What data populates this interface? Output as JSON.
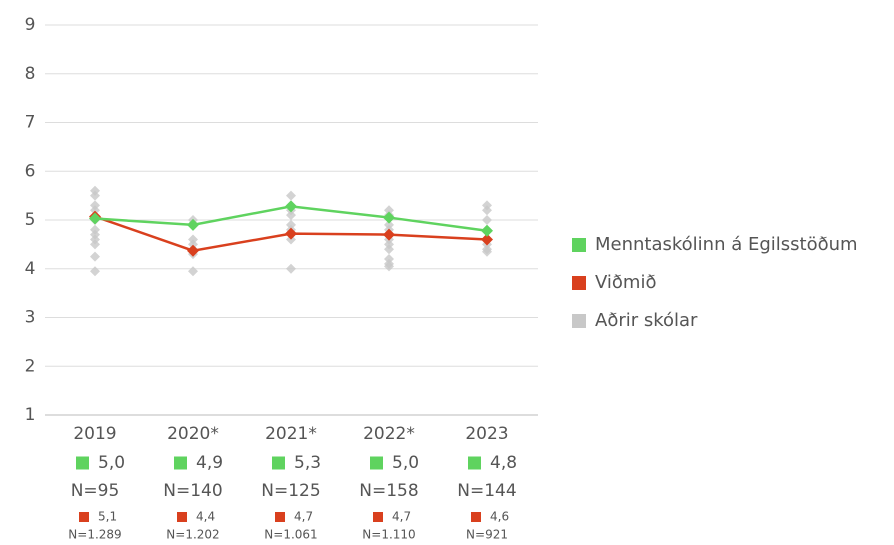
{
  "chart_data": {
    "type": "line",
    "categories": [
      "2019",
      "2020*",
      "2021*",
      "2022*",
      "2023"
    ],
    "ylim": [
      1,
      9
    ],
    "yticks": [
      1,
      2,
      3,
      4,
      5,
      6,
      7,
      8,
      9
    ],
    "grid": true,
    "legend": "right",
    "series": [
      {
        "name": "Menntaskólinn á Egilsstöðum",
        "color": "#5fd35f",
        "values": [
          5.03,
          4.9,
          5.28,
          5.05,
          4.78
        ],
        "value_labels": [
          "5,0",
          "4,9",
          "5,3",
          "5,0",
          "4,8"
        ],
        "n_labels": [
          "N=95",
          "N=140",
          "N=125",
          "N=158",
          "N=144"
        ]
      },
      {
        "name": "Viðmið",
        "color": "#d9401e",
        "values": [
          5.07,
          4.37,
          4.72,
          4.7,
          4.6
        ],
        "value_labels": [
          "5,1",
          "4,4",
          "4,7",
          "4,7",
          "4,6"
        ],
        "n_labels": [
          "N=1.289",
          "N=1.202",
          "N=1.061",
          "N=1.110",
          "N=921"
        ]
      },
      {
        "name": "Aðrir skólar",
        "color": "#c8c8c8",
        "type": "scatter",
        "values": [
          [
            5.6,
            5.5,
            5.3,
            5.2,
            5.0,
            4.8,
            4.7,
            4.6,
            4.5,
            4.25,
            3.95
          ],
          [
            5.0,
            4.9,
            4.6,
            4.5,
            4.4,
            4.3,
            3.95
          ],
          [
            5.5,
            5.3,
            5.2,
            5.1,
            4.9,
            4.8,
            4.6,
            4.0
          ],
          [
            5.2,
            5.1,
            4.9,
            4.8,
            4.6,
            4.5,
            4.4,
            4.2,
            4.1,
            4.05
          ],
          [
            5.3,
            5.2,
            5.0,
            4.8,
            4.6,
            4.5,
            4.4,
            4.35
          ]
        ]
      }
    ]
  }
}
